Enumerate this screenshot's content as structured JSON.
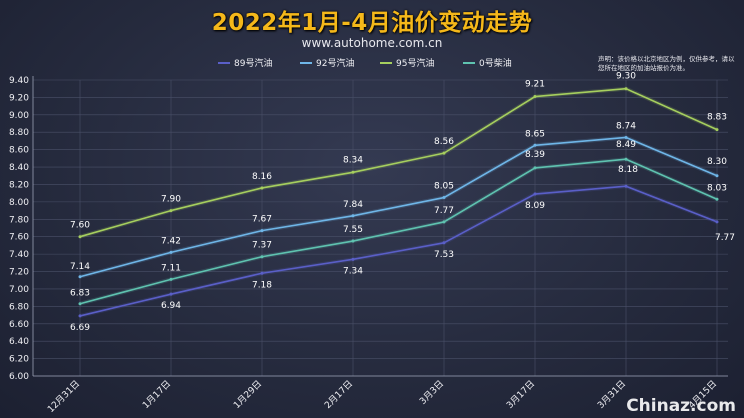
{
  "chart_data": {
    "type": "line",
    "title": "2022年1月-4月油价变动走势",
    "subtitle": "www.autohome.com.cn",
    "note": "声明：该价格以北京地区为例，仅供参考，请以您所在地区的加油站报价为准。",
    "xlabel": "",
    "ylabel": "",
    "categories": [
      "12月31日",
      "1月17日",
      "1月29日",
      "2月17日",
      "3月3日",
      "3月17日",
      "3月31日",
      "4月15日"
    ],
    "ylim": [
      6.0,
      9.4
    ],
    "yticks": [
      "6.00",
      "6.20",
      "6.40",
      "6.60",
      "6.80",
      "7.00",
      "7.20",
      "7.40",
      "7.60",
      "7.80",
      "8.00",
      "8.20",
      "8.40",
      "8.60",
      "8.80",
      "9.00",
      "9.20",
      "9.40"
    ],
    "grid": true,
    "legend_position": "top",
    "series": [
      {
        "name": "89号汽油",
        "color": "#5a5fc8",
        "values": [
          6.69,
          6.94,
          7.18,
          7.34,
          7.53,
          8.09,
          8.18,
          7.77
        ],
        "labels": [
          "6.69",
          "6.94",
          "7.18",
          "7.34",
          "7.53",
          "8.09",
          "8.18",
          "7.77"
        ]
      },
      {
        "name": "92号汽油",
        "color": "#6fb6e8",
        "values": [
          7.14,
          7.42,
          7.67,
          7.84,
          8.05,
          8.65,
          8.74,
          8.3
        ],
        "labels": [
          "7.14",
          "7.42",
          "7.67",
          "7.84",
          "8.05",
          "8.65",
          "8.74",
          "8.30"
        ]
      },
      {
        "name": "95号汽油",
        "color": "#a6cf5e",
        "values": [
          7.6,
          7.9,
          8.16,
          8.34,
          8.56,
          9.21,
          9.3,
          8.83
        ],
        "labels": [
          "7.60",
          "7.90",
          "8.16",
          "8.34",
          "8.56",
          "9.21",
          "9.30",
          "8.83"
        ]
      },
      {
        "name": "0号柴油",
        "color": "#5fc3b0",
        "values": [
          6.83,
          7.11,
          7.37,
          7.55,
          7.77,
          8.39,
          8.49,
          8.03
        ],
        "labels": [
          "6.83",
          "7.11",
          "7.37",
          "7.55",
          "7.77",
          "8.39",
          "8.49",
          "8.03"
        ]
      }
    ]
  },
  "watermark": "Chinaz.com"
}
